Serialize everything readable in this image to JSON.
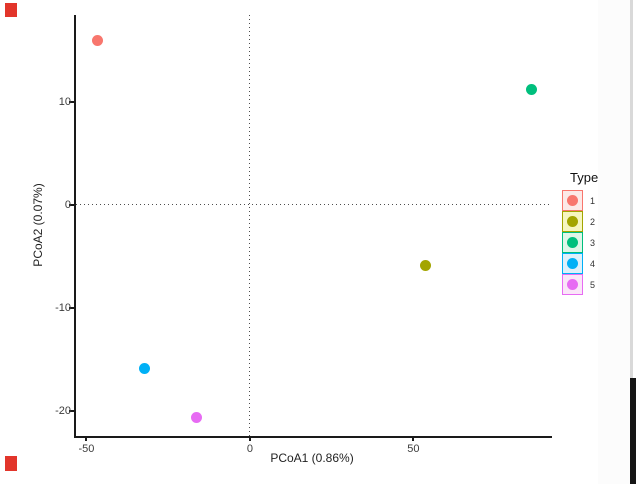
{
  "chart_data": {
    "type": "scatter",
    "title": "",
    "xlabel": "PCoA1 (0.86%)",
    "ylabel": "PCoA2 (0.07%)",
    "xlim": [
      -53.2,
      92.4
    ],
    "ylim": [
      -22.4,
      18.4
    ],
    "x_ticks": [
      -50,
      0,
      50
    ],
    "y_ticks": [
      10,
      0,
      -10,
      -20
    ],
    "grid": false,
    "reference_lines": [
      {
        "axis": "x",
        "value": 0,
        "style": "dotted"
      },
      {
        "axis": "y",
        "value": 0,
        "style": "dotted"
      }
    ],
    "legend": {
      "title": "Type",
      "position": "right"
    },
    "series": [
      {
        "name": "1",
        "color": "#F8766D",
        "key_bg": "#FCE9E7",
        "points": [
          {
            "x": -46.5,
            "y": 15.9
          }
        ]
      },
      {
        "name": "2",
        "color": "#A3A500",
        "key_bg": "#F6F6C0",
        "points": [
          {
            "x": 53.8,
            "y": -5.9
          }
        ]
      },
      {
        "name": "3",
        "color": "#00BF7D",
        "key_bg": "#DFF6E8",
        "points": [
          {
            "x": 86.0,
            "y": 11.2
          }
        ]
      },
      {
        "name": "4",
        "color": "#00B0F6",
        "key_bg": "#DFF0FA",
        "points": [
          {
            "x": -32.1,
            "y": -15.9
          }
        ]
      },
      {
        "name": "5",
        "color": "#E76BF3",
        "key_bg": "#FAE6F8",
        "points": [
          {
            "x": -16.2,
            "y": -20.6
          }
        ]
      }
    ]
  },
  "artifacts": {
    "red_mark_color": "#E2352B",
    "edge_line_color": "#D9D9D9",
    "dark_strip_color": "#151515"
  }
}
